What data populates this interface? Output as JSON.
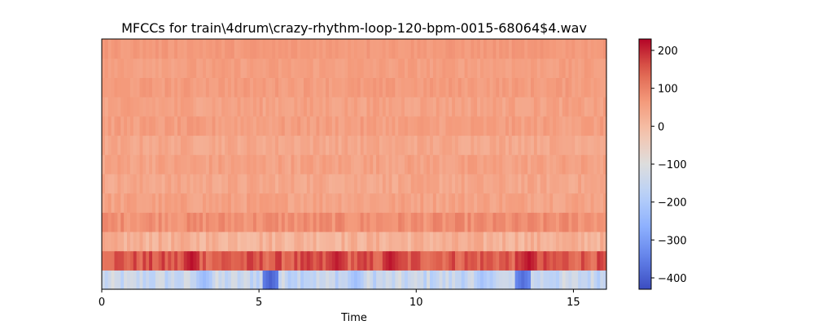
{
  "chart_data": {
    "type": "heatmap",
    "title": "MFCCs for train\\4drum\\crazy-rhythm-loop-120-bpm-0015-68064$4.wav",
    "xlabel": "Time",
    "ylabel": "",
    "xlim": [
      0,
      16.05
    ],
    "x_ticks": [
      0,
      5,
      10,
      15
    ],
    "x_tick_labels": [
      "0",
      "5",
      "10",
      "15"
    ],
    "n_coefficients": 13,
    "n_frames": 160,
    "frame_duration": 0.1,
    "colormap": "coolwarm",
    "colorbar": {
      "vmin": -430,
      "vmax": 230,
      "ticks": [
        200,
        100,
        0,
        -100,
        -200,
        -300,
        -400
      ],
      "tick_labels": [
        "200",
        "100",
        "0",
        "−100",
        "−200",
        "−300",
        "−400"
      ]
    },
    "coefficient_rows": [
      {
        "index": 0,
        "base": -150,
        "spread": 50,
        "note": "lowest band, blue with dips near t=5.3 and t=13.3"
      },
      {
        "index": 1,
        "base": 150,
        "spread": 40
      },
      {
        "index": 2,
        "base": 20,
        "spread": 30
      },
      {
        "index": 3,
        "base": 80,
        "spread": 25
      },
      {
        "index": 4,
        "base": 50,
        "spread": 20
      },
      {
        "index": 5,
        "base": 40,
        "spread": 20
      },
      {
        "index": 6,
        "base": 50,
        "spread": 20
      },
      {
        "index": 7,
        "base": 40,
        "spread": 18
      },
      {
        "index": 8,
        "base": 55,
        "spread": 18
      },
      {
        "index": 9,
        "base": 50,
        "spread": 18
      },
      {
        "index": 10,
        "base": 60,
        "spread": 15
      },
      {
        "index": 11,
        "base": 55,
        "spread": 15
      },
      {
        "index": 12,
        "base": 65,
        "spread": 12
      }
    ],
    "low_events": [
      {
        "row": 0,
        "t": 5.3,
        "value": -400
      },
      {
        "row": 0,
        "t": 13.3,
        "value": -380
      },
      {
        "row": 0,
        "t": 3.2,
        "value": -240
      },
      {
        "row": 0,
        "t": 8.0,
        "value": -230
      },
      {
        "row": 0,
        "t": 12.0,
        "value": -220
      }
    ],
    "high_events": [
      {
        "row": 1,
        "t": 2.8,
        "value": 220
      },
      {
        "row": 1,
        "t": 7.4,
        "value": 210
      },
      {
        "row": 1,
        "t": 9.1,
        "value": 215
      },
      {
        "row": 1,
        "t": 13.5,
        "value": 220
      }
    ]
  }
}
